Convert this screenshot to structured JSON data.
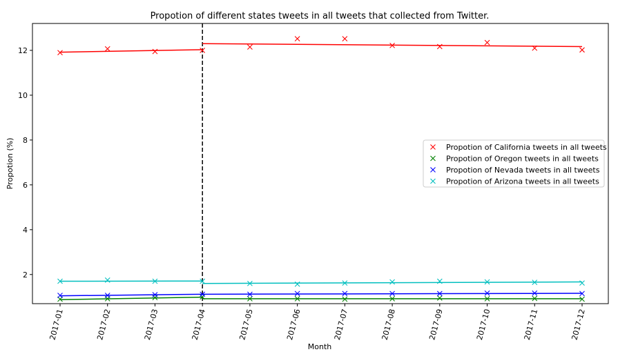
{
  "chart_data": {
    "type": "line",
    "title": "Propotion of different states tweets in all tweets that collected from Twitter.",
    "xlabel": "Month",
    "ylabel": "Propotion (%)",
    "categories": [
      "2017-01",
      "2017-02",
      "2017-03",
      "2017-04",
      "2017-05",
      "2017-06",
      "2017-07",
      "2017-08",
      "2017-09",
      "2017-10",
      "2017-11",
      "2017-12"
    ],
    "ylim": [
      0.7,
      13.2
    ],
    "yticks": [
      2,
      4,
      6,
      8,
      10,
      12
    ],
    "grid": false,
    "legend_position": "center-right",
    "breakpoint": "2017-04",
    "series": [
      {
        "name": "Propotion of California tweets in all tweets",
        "color": "#ff0000",
        "values": [
          11.9,
          12.07,
          11.95,
          12.0,
          12.15,
          12.52,
          12.52,
          12.22,
          12.17,
          12.35,
          12.1,
          12.02
        ],
        "fit_segments": [
          {
            "from": "2017-01",
            "to": "2017-04",
            "start": 11.92,
            "end": 12.03
          },
          {
            "from": "2017-04",
            "to": "2017-12",
            "start": 12.3,
            "end": 12.17
          }
        ]
      },
      {
        "name": "Propotion of Oregon tweets in all tweets",
        "color": "#008000",
        "values": [
          0.9,
          0.92,
          0.97,
          1.0,
          0.92,
          0.92,
          0.9,
          0.92,
          0.95,
          0.92,
          0.93,
          0.9
        ],
        "fit_segments": [
          {
            "from": "2017-01",
            "to": "2017-04",
            "start": 0.88,
            "end": 0.99
          },
          {
            "from": "2017-04",
            "to": "2017-12",
            "start": 0.92,
            "end": 0.92
          }
        ]
      },
      {
        "name": "Propotion of Nevada tweets in all tweets",
        "color": "#0000ff",
        "values": [
          1.07,
          1.07,
          1.1,
          1.12,
          1.12,
          1.15,
          1.15,
          1.15,
          1.15,
          1.17,
          1.17,
          1.15
        ],
        "fit_segments": [
          {
            "from": "2017-01",
            "to": "2017-04",
            "start": 1.05,
            "end": 1.12
          },
          {
            "from": "2017-04",
            "to": "2017-12",
            "start": 1.12,
            "end": 1.16
          }
        ]
      },
      {
        "name": "Propotion of Arizona tweets in all tweets",
        "color": "#00bfbf",
        "values": [
          1.7,
          1.75,
          1.7,
          1.7,
          1.6,
          1.57,
          1.62,
          1.67,
          1.7,
          1.67,
          1.65,
          1.62
        ],
        "fit_segments": [
          {
            "from": "2017-01",
            "to": "2017-04",
            "start": 1.7,
            "end": 1.71
          },
          {
            "from": "2017-04",
            "to": "2017-12",
            "start": 1.6,
            "end": 1.67
          }
        ]
      }
    ]
  }
}
